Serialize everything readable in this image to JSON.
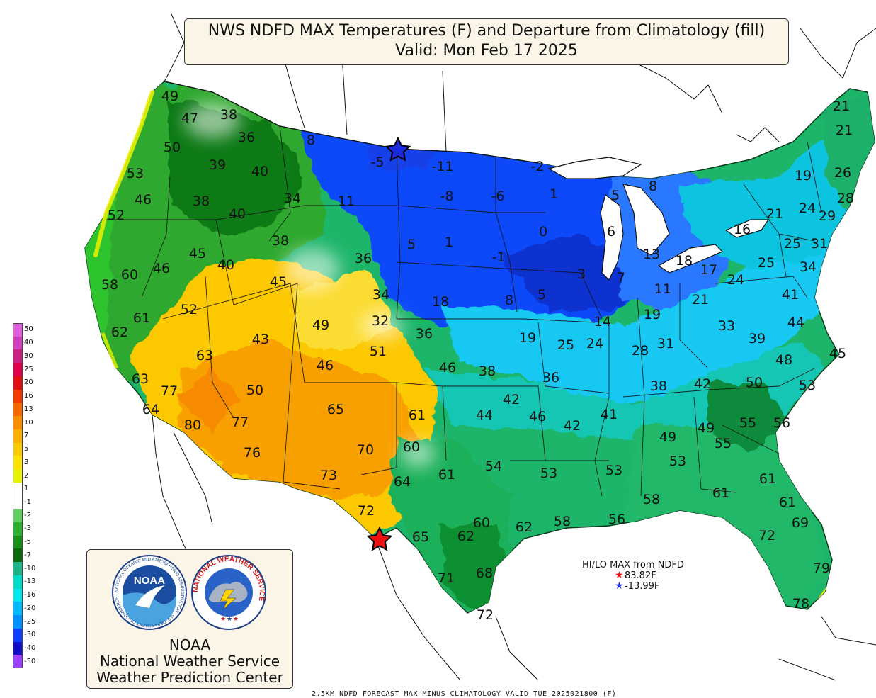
{
  "title": {
    "line1": "NWS NDFD MAX Temperatures (F) and Departure from Climatology (fill)",
    "line2": "Valid: Mon Feb 17 2025"
  },
  "legend": {
    "labels": [
      "50",
      "40",
      "30",
      "25",
      "20",
      "16",
      "13",
      "10",
      "7",
      "5",
      "3",
      "2",
      "1",
      "-1",
      "-2",
      "-3",
      "-5",
      "-7",
      "-10",
      "-13",
      "-16",
      "-20",
      "-25",
      "-30",
      "-40",
      "-50"
    ],
    "colors": [
      "#e060e0",
      "#d040c0",
      "#c82080",
      "#e0004a",
      "#e01010",
      "#f03a00",
      "#f66a00",
      "#f89000",
      "#fbb000",
      "#fcc800",
      "#fbe000",
      "#e6f000",
      "#ffffff",
      "#ffffff",
      "#5fd05f",
      "#30b030",
      "#189018",
      "#0a6a0a",
      "#20b48a",
      "#00dcc8",
      "#00e8ec",
      "#00bcff",
      "#0090ff",
      "#1040ff",
      "#1010c8",
      "#a040ff"
    ]
  },
  "hilo": {
    "title": "HI/LO MAX from NDFD",
    "hi": "83.82F",
    "lo": "-13.99F",
    "hi_color": "#ee1111",
    "lo_color": "#1a2adf"
  },
  "org": {
    "noaa_badge": "NOAA",
    "noaa_ring": "NATIONAL OCEANIC AND ATMOSPHERIC ADMINISTRATION · U.S. DEPARTMENT OF COMMERCE",
    "nws_ring": "NATIONAL WEATHER SERVICE",
    "line1": "NOAA",
    "line2": "National Weather Service",
    "line3": "Weather Prediction Center"
  },
  "bottom_caption": "2.5KM NDFD FORECAST MAX MINUS CLIMATOLOGY VALID TUE 2025021800 (F)",
  "city_temps": [
    {
      "label": "49",
      "temp_f": 49,
      "city": "NW Washington coast"
    },
    {
      "label": "47",
      "temp_f": 47,
      "city": "Seattle"
    },
    {
      "label": "38",
      "temp_f": 38,
      "city": "N Washington Cascades"
    },
    {
      "label": "36",
      "temp_f": 36,
      "city": "Spokane"
    },
    {
      "label": "8",
      "temp_f": 8,
      "city": "NW Montana"
    },
    {
      "label": "-5",
      "temp_f": -5,
      "city": "NE Montana"
    },
    {
      "label": "-11",
      "temp_f": -11,
      "city": "NW North Dakota"
    },
    {
      "label": "-2",
      "temp_f": -2,
      "city": "N Minnesota"
    },
    {
      "label": "21",
      "temp_f": 21,
      "city": "N Maine"
    },
    {
      "label": "21",
      "temp_f": 21,
      "city": "E Maine"
    },
    {
      "label": "50",
      "temp_f": 50,
      "city": "SW Washington"
    },
    {
      "label": "39",
      "temp_f": 39,
      "city": "Yakima"
    },
    {
      "label": "40",
      "temp_f": 40,
      "city": "Lewiston"
    },
    {
      "label": "53",
      "temp_f": 53,
      "city": "N Oregon coast"
    },
    {
      "label": "46",
      "temp_f": 46,
      "city": "Portland"
    },
    {
      "label": "38",
      "temp_f": 38,
      "city": "Pendleton"
    },
    {
      "label": "34",
      "temp_f": 34,
      "city": "W Montana"
    },
    {
      "label": "11",
      "temp_f": 11,
      "city": "Great Falls"
    },
    {
      "label": "-8",
      "temp_f": -8,
      "city": "Bismarck area"
    },
    {
      "label": "-6",
      "temp_f": -6,
      "city": "Grand Forks area"
    },
    {
      "label": "1",
      "temp_f": 1,
      "city": "Duluth"
    },
    {
      "label": "5",
      "temp_f": 5,
      "city": "Upper Michigan"
    },
    {
      "label": "8",
      "temp_f": 8,
      "city": "Sault Ste Marie"
    },
    {
      "label": "19",
      "temp_f": 19,
      "city": "N Vermont"
    },
    {
      "label": "26",
      "temp_f": 26,
      "city": "Central Maine"
    },
    {
      "label": "28",
      "temp_f": 28,
      "city": "S Maine"
    },
    {
      "label": "52",
      "temp_f": 52,
      "city": "Central Oregon coast"
    },
    {
      "label": "40",
      "temp_f": 40,
      "city": "Boise"
    },
    {
      "label": "21",
      "temp_f": 21,
      "city": "Watertown"
    },
    {
      "label": "24",
      "temp_f": 24,
      "city": "Albany"
    },
    {
      "label": "29",
      "temp_f": 29,
      "city": "Portland ME"
    },
    {
      "label": "16",
      "temp_f": 16,
      "city": "Buffalo"
    },
    {
      "label": "0",
      "temp_f": 0,
      "city": "Minneapolis"
    },
    {
      "label": "6",
      "temp_f": 6,
      "city": "Green Bay"
    },
    {
      "label": "5",
      "temp_f": 5,
      "city": "W South Dakota"
    },
    {
      "label": "1",
      "temp_f": 1,
      "city": "Pierre"
    },
    {
      "label": "38",
      "temp_f": 38,
      "city": "SE Idaho"
    },
    {
      "label": "25",
      "temp_f": 25,
      "city": "Binghamton"
    },
    {
      "label": "31",
      "temp_f": 31,
      "city": "Boston"
    },
    {
      "label": "45",
      "temp_f": 45,
      "city": "SW Idaho"
    },
    {
      "label": "40",
      "temp_f": 40,
      "city": "S Idaho"
    },
    {
      "label": "36",
      "temp_f": 36,
      "city": "Casper"
    },
    {
      "label": "-1",
      "temp_f": -1,
      "city": "Sioux Falls"
    },
    {
      "label": "13",
      "temp_f": 13,
      "city": "Lower Michigan"
    },
    {
      "label": "18",
      "temp_f": 18,
      "city": "Detroit"
    },
    {
      "label": "17",
      "temp_f": 17,
      "city": "Erie"
    },
    {
      "label": "25",
      "temp_f": 25,
      "city": "Harrisburg"
    },
    {
      "label": "34",
      "temp_f": 34,
      "city": "New York City"
    },
    {
      "label": "60",
      "temp_f": 60,
      "city": "N California coast"
    },
    {
      "label": "46",
      "temp_f": 46,
      "city": "N Nevada"
    },
    {
      "label": "3",
      "temp_f": 3,
      "city": "Des Moines"
    },
    {
      "label": "7",
      "temp_f": 7,
      "city": "Chicago"
    },
    {
      "label": "58",
      "temp_f": 58,
      "city": "Cape Mendocino"
    },
    {
      "label": "45",
      "temp_f": 45,
      "city": "Salt Lake City"
    },
    {
      "label": "34",
      "temp_f": 34,
      "city": "Cheyenne"
    },
    {
      "label": "24",
      "temp_f": 24,
      "city": "Pittsburgh"
    },
    {
      "label": "41",
      "temp_f": 41,
      "city": "Washington DC"
    },
    {
      "label": "18",
      "temp_f": 18,
      "city": "Sidney NE"
    },
    {
      "label": "8",
      "temp_f": 8,
      "city": "North Platte"
    },
    {
      "label": "5",
      "temp_f": 5,
      "city": "Omaha"
    },
    {
      "label": "11",
      "temp_f": 11,
      "city": "Indianapolis"
    },
    {
      "label": "21",
      "temp_f": 21,
      "city": "Columbus"
    },
    {
      "label": "61",
      "temp_f": 61,
      "city": "Sacramento Valley"
    },
    {
      "label": "52",
      "temp_f": 52,
      "city": "Reno"
    },
    {
      "label": "32",
      "temp_f": 32,
      "city": "Denver"
    },
    {
      "label": "19",
      "temp_f": 19,
      "city": "Springfield IL"
    },
    {
      "label": "14",
      "temp_f": 14,
      "city": "Quad Cities"
    },
    {
      "label": "44",
      "temp_f": 44,
      "city": "Norfolk"
    },
    {
      "label": "62",
      "temp_f": 62,
      "city": "San Francisco"
    },
    {
      "label": "49",
      "temp_f": 49,
      "city": "Grand Junction"
    },
    {
      "label": "33",
      "temp_f": 33,
      "city": "Charleston WV"
    },
    {
      "label": "36",
      "temp_f": 36,
      "city": "Colorado Springs"
    },
    {
      "label": "39",
      "temp_f": 39,
      "city": "Richmond"
    },
    {
      "label": "43",
      "temp_f": 43,
      "city": "Central Nevada"
    },
    {
      "label": "19",
      "temp_f": 19,
      "city": "Dodge City"
    },
    {
      "label": "25",
      "temp_f": 25,
      "city": "Kansas City"
    },
    {
      "label": "24",
      "temp_f": 24,
      "city": "St Louis"
    },
    {
      "label": "28",
      "temp_f": 28,
      "city": "Louisville"
    },
    {
      "label": "31",
      "temp_f": 31,
      "city": "Lexington"
    },
    {
      "label": "51",
      "temp_f": 51,
      "city": "Pueblo"
    },
    {
      "label": "45",
      "temp_f": 45,
      "city": "Cape Hatteras"
    },
    {
      "label": "63",
      "temp_f": 63,
      "city": "Bishop"
    },
    {
      "label": "48",
      "temp_f": 48,
      "city": "Raleigh"
    },
    {
      "label": "46",
      "temp_f": 46,
      "city": "Durango"
    },
    {
      "label": "46",
      "temp_f": 46,
      "city": "Amarillo area"
    },
    {
      "label": "38",
      "temp_f": 38,
      "city": "Wichita"
    },
    {
      "label": "36",
      "temp_f": 36,
      "city": "Springfield MO"
    },
    {
      "label": "63",
      "temp_f": 63,
      "city": "Monterey"
    },
    {
      "label": "38",
      "temp_f": 38,
      "city": "Nashville"
    },
    {
      "label": "42",
      "temp_f": 42,
      "city": "Knoxville"
    },
    {
      "label": "50",
      "temp_f": 50,
      "city": "Charlotte"
    },
    {
      "label": "53",
      "temp_f": 53,
      "city": "Wilmington"
    },
    {
      "label": "77",
      "temp_f": 77,
      "city": "Bakersfield"
    },
    {
      "label": "50",
      "temp_f": 50,
      "city": "Las Vegas"
    },
    {
      "label": "64",
      "temp_f": 64,
      "city": "Santa Barbara"
    },
    {
      "label": "65",
      "temp_f": 65,
      "city": "Albuquerque"
    },
    {
      "label": "61",
      "temp_f": 61,
      "city": "Lubbock"
    },
    {
      "label": "42",
      "temp_f": 42,
      "city": "Tulsa"
    },
    {
      "label": "44",
      "temp_f": 44,
      "city": "Oklahoma City"
    },
    {
      "label": "46",
      "temp_f": 46,
      "city": "Fort Smith"
    },
    {
      "label": "42",
      "temp_f": 42,
      "city": "Little Rock"
    },
    {
      "label": "41",
      "temp_f": 41,
      "city": "Memphis"
    },
    {
      "label": "49",
      "temp_f": 49,
      "city": "Huntsville"
    },
    {
      "label": "49",
      "temp_f": 49,
      "city": "Greenville SC"
    },
    {
      "label": "55",
      "temp_f": 55,
      "city": "Columbia"
    },
    {
      "label": "56",
      "temp_f": 56,
      "city": "Charleston SC"
    },
    {
      "label": "80",
      "temp_f": 80,
      "city": "Los Angeles"
    },
    {
      "label": "77",
      "temp_f": 77,
      "city": "Phoenix area"
    },
    {
      "label": "55",
      "temp_f": 55,
      "city": "Augusta"
    },
    {
      "label": "76",
      "temp_f": 76,
      "city": "Tucson area"
    },
    {
      "label": "70",
      "temp_f": 70,
      "city": "Roswell"
    },
    {
      "label": "60",
      "temp_f": 60,
      "city": "Midland"
    },
    {
      "label": "54",
      "temp_f": 54,
      "city": "Dallas"
    },
    {
      "label": "53",
      "temp_f": 53,
      "city": "Shreveport"
    },
    {
      "label": "53",
      "temp_f": 53,
      "city": "Jackson"
    },
    {
      "label": "53",
      "temp_f": 53,
      "city": "Montgomery"
    },
    {
      "label": "73",
      "temp_f": 73,
      "city": "El Paso"
    },
    {
      "label": "61",
      "temp_f": 61,
      "city": "Abilene"
    },
    {
      "label": "64",
      "temp_f": 64,
      "city": "Big Spring"
    },
    {
      "label": "61",
      "temp_f": 61,
      "city": "Savannah"
    },
    {
      "label": "61",
      "temp_f": 61,
      "city": "Jacksonville"
    },
    {
      "label": "58",
      "temp_f": 58,
      "city": "Pensacola"
    },
    {
      "label": "61",
      "temp_f": 61,
      "city": "Tallahassee"
    },
    {
      "label": "72",
      "temp_f": 72,
      "city": "Big Bend"
    },
    {
      "label": "69",
      "temp_f": 69,
      "city": "Daytona"
    },
    {
      "label": "60",
      "temp_f": 60,
      "city": "Austin"
    },
    {
      "label": "62",
      "temp_f": 62,
      "city": "Houston area"
    },
    {
      "label": "58",
      "temp_f": 58,
      "city": "Lake Charles"
    },
    {
      "label": "56",
      "temp_f": 56,
      "city": "New Orleans"
    },
    {
      "label": "65",
      "temp_f": 65,
      "city": "Del Rio"
    },
    {
      "label": "62",
      "temp_f": 62,
      "city": "San Antonio"
    },
    {
      "label": "72",
      "temp_f": 72,
      "city": "Tampa"
    },
    {
      "label": "71",
      "temp_f": 71,
      "city": "Laredo"
    },
    {
      "label": "68",
      "temp_f": 68,
      "city": "Corpus Christi"
    },
    {
      "label": "79",
      "temp_f": 79,
      "city": "Miami"
    },
    {
      "label": "72",
      "temp_f": 72,
      "city": "Brownsville"
    },
    {
      "label": "78",
      "temp_f": 78,
      "city": "Key West"
    }
  ]
}
